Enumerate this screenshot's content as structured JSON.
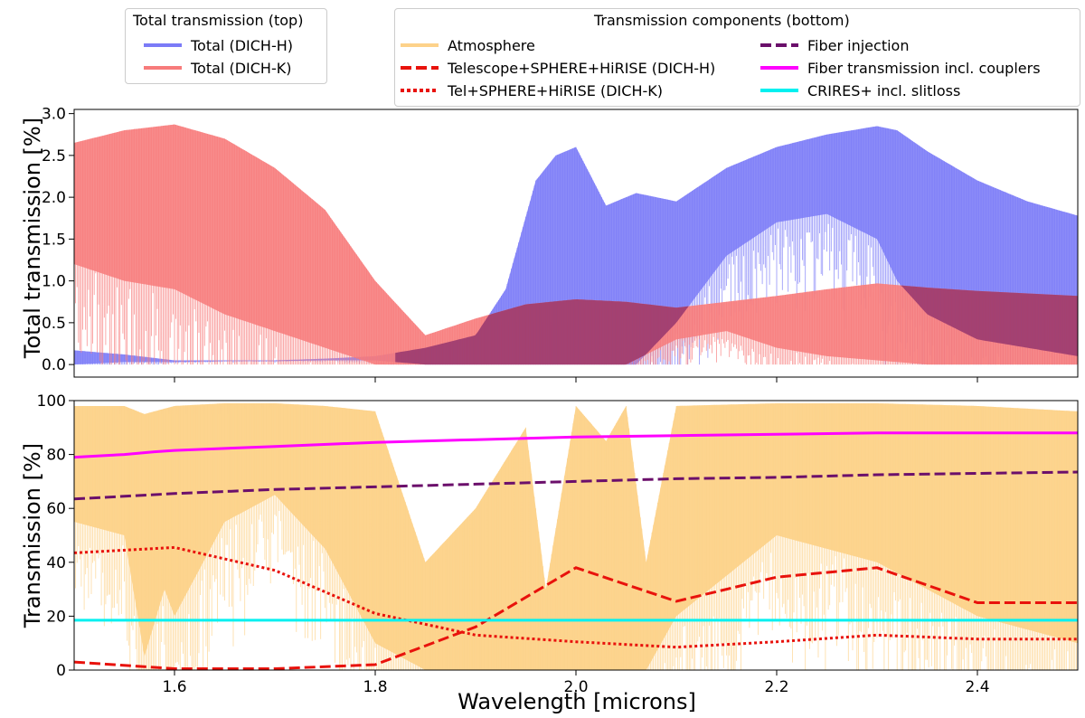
{
  "legend_top": {
    "title": "Total transmission (top)",
    "items": [
      {
        "label": "Total (DICH-H)",
        "color": "#7b7bf7",
        "style": "solid"
      },
      {
        "label": "Total (DICH-K)",
        "color": "#f77b7b",
        "style": "solid"
      }
    ]
  },
  "legend_bottom": {
    "title": "Transmission components (bottom)",
    "items": [
      {
        "label": "Atmosphere",
        "color": "#fdd28a",
        "style": "solid"
      },
      {
        "label": "Telescope+SPHERE+HiRISE (DICH-H)",
        "color": "#e8120c",
        "style": "dashed"
      },
      {
        "label": "Tel+SPHERE+HiRISE (DICH-K)",
        "color": "#e8120c",
        "style": "dotted"
      },
      {
        "label": "Fiber injection",
        "color": "#6b0f6b",
        "style": "dashed"
      },
      {
        "label": "Fiber transmission incl. couplers",
        "color": "#ff00ff",
        "style": "solid"
      },
      {
        "label": "CRIRES+ incl. slitloss",
        "color": "#00f0f0",
        "style": "solid"
      }
    ]
  },
  "chart_data": [
    {
      "type": "area",
      "panel": "top",
      "ylabel": "Total transmission [%]",
      "xlim": [
        1.5,
        2.5
      ],
      "ylim": [
        -0.15,
        3.05
      ],
      "yticks": [
        "0.0",
        "0.5",
        "1.0",
        "1.5",
        "2.0",
        "2.5",
        "3.0"
      ],
      "ytick_values": [
        0.0,
        0.5,
        1.0,
        1.5,
        2.0,
        2.5,
        3.0
      ],
      "series": [
        {
          "name": "Total (DICH-H)",
          "color": "#7b7bf7",
          "x": [
            1.5,
            1.55,
            1.6,
            1.65,
            1.7,
            1.75,
            1.8,
            1.85,
            1.9,
            1.93,
            1.96,
            1.98,
            2.0,
            2.03,
            2.06,
            2.1,
            2.15,
            2.2,
            2.25,
            2.3,
            2.32,
            2.35,
            2.4,
            2.45,
            2.5
          ],
          "upper": [
            0.17,
            0.12,
            0.05,
            0.05,
            0.05,
            0.07,
            0.1,
            0.2,
            0.35,
            0.9,
            2.2,
            2.5,
            2.6,
            1.9,
            2.05,
            1.95,
            2.35,
            2.6,
            2.75,
            2.85,
            2.8,
            2.55,
            2.2,
            1.95,
            1.78
          ],
          "lower": [
            0.0,
            0.03,
            0.03,
            0.04,
            0.04,
            0.05,
            0.05,
            0.0,
            0.0,
            0.0,
            0.0,
            0.0,
            0.0,
            0.0,
            0.0,
            0.5,
            1.3,
            1.7,
            1.8,
            1.5,
            1.0,
            0.6,
            0.3,
            0.2,
            0.1
          ]
        },
        {
          "name": "Total (DICH-K)",
          "color": "#f77b7b",
          "x": [
            1.5,
            1.55,
            1.6,
            1.65,
            1.7,
            1.75,
            1.8,
            1.85,
            1.9,
            1.95,
            2.0,
            2.05,
            2.1,
            2.15,
            2.2,
            2.25,
            2.3,
            2.35,
            2.4,
            2.45,
            2.5
          ],
          "upper": [
            2.65,
            2.8,
            2.87,
            2.7,
            2.35,
            1.85,
            1.0,
            0.35,
            0.55,
            0.72,
            0.78,
            0.75,
            0.68,
            0.75,
            0.82,
            0.9,
            0.97,
            0.92,
            0.88,
            0.85,
            0.82
          ],
          "lower": [
            1.2,
            1.0,
            0.9,
            0.6,
            0.4,
            0.2,
            0.0,
            0.0,
            0.0,
            0.0,
            0.0,
            0.0,
            0.3,
            0.4,
            0.2,
            0.1,
            0.05,
            0.0,
            0.0,
            0.0,
            0.0
          ]
        }
      ]
    },
    {
      "type": "line",
      "panel": "bottom",
      "xlabel": "Wavelength [microns]",
      "ylabel": "Transmission [%]",
      "xlim": [
        1.5,
        2.5
      ],
      "ylim": [
        0,
        100
      ],
      "xticks": [
        "1.6",
        "1.8",
        "2.0",
        "2.2",
        "2.4"
      ],
      "xtick_values": [
        1.6,
        1.8,
        2.0,
        2.2,
        2.4
      ],
      "yticks": [
        "0",
        "20",
        "40",
        "60",
        "80",
        "100"
      ],
      "ytick_values": [
        0,
        20,
        40,
        60,
        80,
        100
      ],
      "series": [
        {
          "name": "Fiber transmission incl. couplers",
          "color": "#ff00ff",
          "style": "solid",
          "x": [
            1.5,
            1.55,
            1.58,
            1.6,
            1.7,
            1.8,
            1.9,
            2.0,
            2.1,
            2.2,
            2.3,
            2.4,
            2.5
          ],
          "y": [
            79,
            80,
            81,
            81.5,
            83,
            84.5,
            85.5,
            86.5,
            87,
            87.5,
            88,
            88,
            88
          ]
        },
        {
          "name": "Fiber injection",
          "color": "#6b0f6b",
          "style": "dashed",
          "x": [
            1.5,
            1.6,
            1.7,
            1.8,
            1.9,
            2.0,
            2.1,
            2.2,
            2.3,
            2.4,
            2.5
          ],
          "y": [
            63.5,
            65.5,
            67,
            68,
            69,
            70,
            71,
            71.5,
            72.5,
            73,
            73.5
          ]
        },
        {
          "name": "Tel+SPHERE+HiRISE (DICH-K)",
          "color": "#e8120c",
          "style": "dotted",
          "x": [
            1.5,
            1.6,
            1.7,
            1.8,
            1.9,
            2.0,
            2.1,
            2.2,
            2.3,
            2.4,
            2.5
          ],
          "y": [
            43.5,
            45.5,
            37,
            21,
            13,
            10.5,
            8.5,
            10.5,
            13,
            11.5,
            11.5
          ]
        },
        {
          "name": "Telescope+SPHERE+HiRISE (DICH-H)",
          "color": "#e8120c",
          "style": "dashed",
          "x": [
            1.5,
            1.6,
            1.7,
            1.8,
            1.9,
            2.0,
            2.1,
            2.2,
            2.3,
            2.4,
            2.5
          ],
          "y": [
            3,
            0.5,
            0.5,
            2,
            16,
            38,
            25.5,
            34.5,
            38,
            25,
            25
          ]
        },
        {
          "name": "CRIRES+ incl. slitloss",
          "color": "#00f0f0",
          "style": "solid",
          "x": [
            1.5,
            2.5
          ],
          "y": [
            18.5,
            18.5
          ]
        },
        {
          "name": "Atmosphere",
          "color": "#fdd28a",
          "style": "area",
          "x": [
            1.5,
            1.55,
            1.57,
            1.59,
            1.6,
            1.65,
            1.7,
            1.75,
            1.8,
            1.85,
            1.9,
            1.95,
            1.97,
            2.0,
            2.03,
            2.05,
            2.07,
            2.1,
            2.2,
            2.3,
            2.4,
            2.5
          ],
          "upper": [
            98,
            98,
            95,
            97,
            98,
            99,
            99,
            98,
            96,
            40,
            60,
            90,
            30,
            98,
            85,
            98,
            40,
            98,
            99,
            99,
            98,
            96
          ],
          "lower": [
            55,
            50,
            5,
            30,
            20,
            55,
            65,
            45,
            10,
            0,
            0,
            0,
            0,
            0,
            0,
            0,
            0,
            20,
            50,
            40,
            20,
            10
          ]
        }
      ]
    }
  ]
}
